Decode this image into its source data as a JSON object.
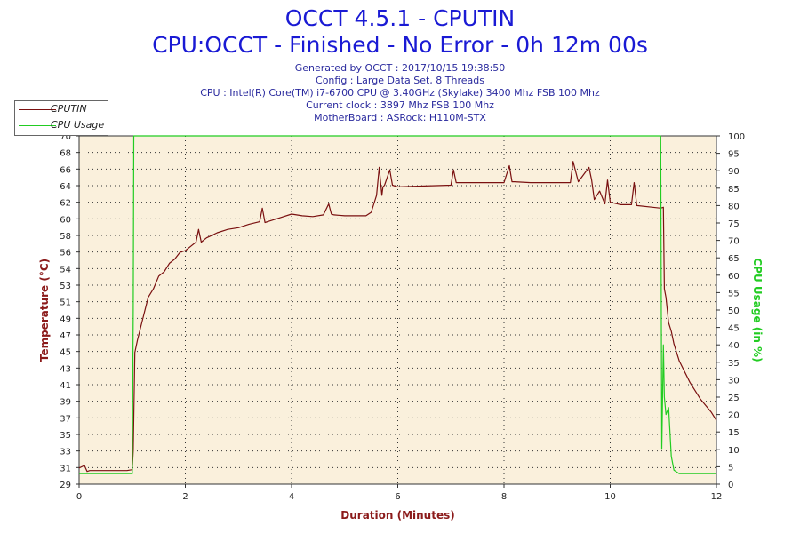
{
  "header": {
    "title": "OCCT 4.5.1 - CPUTIN",
    "subtitle": "CPU:OCCT - Finished - No Error - 0h 12m 00s",
    "info_lines": [
      "Generated by OCCT : 2017/10/15 19:38:50",
      "Config : Large Data Set, 8 Threads",
      "CPU : Intel(R) Core(TM) i7-6700 CPU @ 3.40GHz (Skylake) 3400 Mhz FSB 100 Mhz",
      "Current clock : 3897 Mhz FSB 100 Mhz",
      "MotherBoard : ASRock: H110M-STX"
    ]
  },
  "colors": {
    "plot_background": "#faf0dc",
    "temperature": "#7a1010",
    "cpu_usage": "#22cc22",
    "left_axis_label": "#8b1a1a",
    "right_axis_label": "#22cc22",
    "x_axis_label": "#8b1a1a"
  },
  "chart_data": {
    "type": "line",
    "title": "OCCT 4.5.1 - CPUTIN",
    "subtitle": "CPU:OCCT - Finished - No Error - 0h 12m 00s",
    "xlabel": "Duration (Minutes)",
    "ylabel": "Temperature (°C)",
    "y2label": "CPU Usage (in %)",
    "xlim": [
      0,
      12
    ],
    "ylim": [
      29,
      70
    ],
    "y2lim": [
      0,
      100
    ],
    "grid": true,
    "legend_position": "top-left",
    "x_ticks": [
      "0",
      "2",
      "4",
      "6",
      "8",
      "10",
      "12"
    ],
    "y_ticks": [
      "29",
      "31",
      "33",
      "35",
      "37",
      "39",
      "41",
      "43",
      "45",
      "47",
      "49",
      "51",
      "53",
      "54",
      "56",
      "58",
      "60",
      "62",
      "64",
      "66",
      "68",
      "70"
    ],
    "y2_ticks": [
      "0",
      "5",
      "10",
      "15",
      "20",
      "25",
      "30",
      "35",
      "40",
      "45",
      "50",
      "55",
      "60",
      "65",
      "70",
      "75",
      "80",
      "85",
      "90",
      "95",
      "100"
    ],
    "series": [
      {
        "name": "CPUTIN",
        "axis": "left",
        "x": [
          0,
          0.1,
          0.15,
          0.2,
          0.5,
          0.9,
          1.0,
          1.02,
          1.05,
          1.1,
          1.2,
          1.3,
          1.4,
          1.5,
          1.6,
          1.7,
          1.8,
          1.9,
          2.0,
          2.1,
          2.2,
          2.25,
          2.3,
          2.4,
          2.5,
          2.6,
          2.8,
          3.0,
          3.2,
          3.4,
          3.45,
          3.5,
          3.6,
          3.8,
          4.0,
          4.2,
          4.4,
          4.6,
          4.7,
          4.75,
          4.8,
          5.0,
          5.2,
          5.4,
          5.5,
          5.6,
          5.65,
          5.7,
          5.72,
          5.75,
          5.85,
          5.9,
          6.0,
          6.5,
          7.0,
          7.05,
          7.1,
          7.5,
          8.0,
          8.1,
          8.15,
          8.2,
          8.5,
          9.0,
          9.25,
          9.3,
          9.4,
          9.6,
          9.65,
          9.7,
          9.8,
          9.9,
          9.95,
          10.0,
          10.2,
          10.4,
          10.45,
          10.5,
          10.8,
          10.95,
          11.0,
          11.02,
          11.05,
          11.1,
          11.15,
          11.2,
          11.3,
          11.5,
          11.7,
          11.9,
          12.0
        ],
        "values": [
          30.9,
          31.2,
          30.5,
          30.6,
          30.6,
          30.6,
          30.7,
          33.0,
          44.5,
          46.0,
          48.5,
          51.0,
          52.0,
          53.5,
          54.0,
          55.0,
          55.5,
          56.3,
          56.5,
          57.0,
          57.5,
          59.0,
          57.5,
          58.0,
          58.3,
          58.6,
          59.0,
          59.2,
          59.6,
          59.9,
          61.5,
          59.8,
          60.0,
          60.4,
          60.8,
          60.6,
          60.5,
          60.7,
          62.0,
          60.8,
          60.7,
          60.6,
          60.6,
          60.6,
          61.0,
          63.0,
          66.3,
          63.0,
          64.0,
          64.2,
          66.0,
          64.2,
          64.0,
          64.1,
          64.2,
          66.0,
          64.5,
          64.5,
          64.5,
          66.5,
          64.6,
          64.6,
          64.5,
          64.5,
          64.5,
          67.0,
          64.6,
          66.3,
          64.8,
          62.5,
          63.5,
          62.0,
          64.8,
          62.2,
          61.9,
          61.9,
          64.5,
          61.8,
          61.6,
          61.5,
          61.6,
          52.0,
          51.0,
          48.0,
          47.0,
          45.5,
          43.5,
          41.0,
          39.0,
          37.5,
          36.5
        ]
      },
      {
        "name": "CPU Usage",
        "axis": "right",
        "x": [
          0,
          0.98,
          1.0,
          1.02,
          1.03,
          10.95,
          10.97,
          11.0,
          11.02,
          11.05,
          11.1,
          11.15,
          11.2,
          11.3,
          12.0
        ],
        "values": [
          3,
          3,
          3,
          50,
          100,
          100,
          10,
          40,
          25,
          20,
          22,
          8,
          4,
          3,
          3
        ]
      }
    ]
  }
}
